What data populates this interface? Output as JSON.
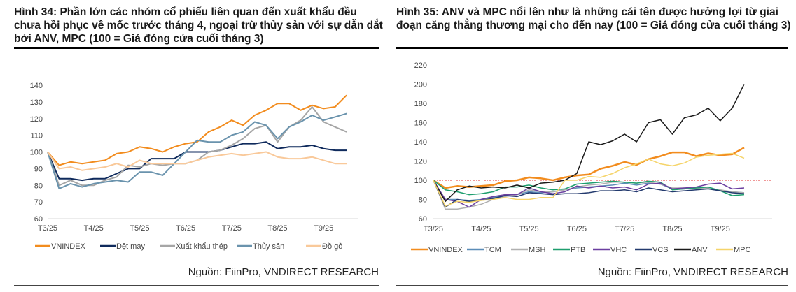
{
  "chart_data": [
    {
      "type": "line",
      "title": "Hình 34: Phần lớn các nhóm cổ phiếu liên quan đến xuất khẩu đều chưa hồi phục về mốc trước tháng 4, ngoại trừ thủy sản với sự dẫn dắt bởi ANV, MPC (100 = Giá đóng cửa cuối tháng 3)",
      "source": "Nguồn: FiinPro, VNDIRECT RESEARCH",
      "x_step_months": 0.25,
      "xticks": [
        "T3/25",
        "T4/25",
        "T5/25",
        "T6/25",
        "T7/25",
        "T8/25",
        "T9/25"
      ],
      "yticks": [
        60,
        70,
        80,
        90,
        100,
        110,
        120,
        130,
        140
      ],
      "ylim": [
        60,
        140
      ],
      "reference_line": 100,
      "legend_position": "bottom",
      "series": [
        {
          "name": "VNINDEX",
          "color": "#F28C1E",
          "values": [
            100,
            92,
            94,
            93,
            94,
            95,
            99,
            100,
            103,
            102,
            100,
            103,
            105,
            106,
            112,
            115,
            119,
            116,
            122,
            125,
            129,
            129,
            125,
            128,
            126,
            127,
            134
          ]
        },
        {
          "name": "Dệt may",
          "color": "#0F2A5C",
          "values": [
            100,
            84,
            84,
            83,
            84,
            84,
            87,
            90,
            90,
            96,
            96,
            96,
            100,
            100,
            100,
            101,
            103,
            105,
            105,
            106,
            102,
            103,
            103,
            104,
            102,
            101,
            101
          ]
        },
        {
          "name": "Xuất khẩu thép",
          "color": "#A6A6A6",
          "values": [
            100,
            80,
            83,
            80,
            80,
            83,
            85,
            92,
            91,
            93,
            92,
            93,
            93,
            95,
            100,
            101,
            104,
            108,
            114,
            116,
            106,
            115,
            119,
            127,
            118,
            115,
            112
          ]
        },
        {
          "name": "Thủy sản",
          "color": "#6A93AD",
          "values": [
            100,
            78,
            81,
            79,
            81,
            82,
            83,
            82,
            88,
            88,
            86,
            93,
            100,
            107,
            106,
            106,
            110,
            112,
            118,
            116,
            108,
            115,
            118,
            122,
            119,
            121,
            123
          ]
        },
        {
          "name": "Đồ gỗ",
          "color": "#F9C99A",
          "values": [
            100,
            90,
            91,
            89,
            90,
            91,
            93,
            91,
            95,
            93,
            93,
            93,
            93,
            95,
            97,
            98,
            99,
            98,
            99,
            100,
            97,
            96,
            96,
            97,
            95,
            93,
            93
          ]
        }
      ]
    },
    {
      "type": "line",
      "title": "Hình 35: ANV và MPC nổi lên như là những cái tên được hưởng lợi từ giai đoạn căng thẳng thương mại cho đến nay (100 = Giá đóng cửa cuối tháng 3)",
      "source": "Nguồn: FiinPro, VNDIRECT RESEARCH",
      "x_step_months": 0.25,
      "xticks": [
        "T3/25",
        "T4/25",
        "T5/25",
        "T6/25",
        "T7/25",
        "T8/25",
        "T9/25"
      ],
      "yticks": [
        60,
        80,
        100,
        120,
        140,
        160,
        180,
        200,
        220
      ],
      "ylim": [
        60,
        220
      ],
      "reference_line": 100,
      "legend_position": "bottom",
      "series": [
        {
          "name": "VNINDEX",
          "color": "#F28C1E",
          "values": [
            100,
            92,
            94,
            93,
            94,
            95,
            99,
            100,
            103,
            102,
            100,
            103,
            105,
            106,
            112,
            115,
            119,
            116,
            122,
            125,
            129,
            129,
            125,
            128,
            126,
            127,
            134
          ]
        },
        {
          "name": "TCM",
          "color": "#5B8DB8",
          "values": [
            100,
            80,
            80,
            79,
            80,
            82,
            84,
            85,
            88,
            87,
            88,
            90,
            92,
            93,
            94,
            95,
            97,
            95,
            97,
            96,
            91,
            91,
            92,
            93,
            89,
            88,
            87
          ]
        },
        {
          "name": "MSH",
          "color": "#B0B0B0",
          "values": [
            100,
            70,
            70,
            72,
            75,
            80,
            83,
            85,
            90,
            88,
            88,
            90,
            93,
            95,
            96,
            98,
            98,
            97,
            98,
            96,
            92,
            92,
            91,
            92,
            90,
            88,
            87
          ]
        },
        {
          "name": "PTB",
          "color": "#1E9E6E",
          "values": [
            100,
            90,
            88,
            85,
            86,
            88,
            93,
            93,
            95,
            92,
            90,
            91,
            96,
            97,
            98,
            99,
            98,
            97,
            99,
            98,
            90,
            91,
            92,
            93,
            89,
            84,
            85
          ]
        },
        {
          "name": "VHC",
          "color": "#6B3FA0",
          "values": [
            100,
            80,
            78,
            72,
            80,
            83,
            85,
            85,
            92,
            88,
            86,
            88,
            94,
            92,
            94,
            92,
            93,
            90,
            96,
            97,
            91,
            92,
            93,
            96,
            97,
            91,
            92
          ]
        },
        {
          "name": "VCS",
          "color": "#233A6E",
          "values": [
            100,
            72,
            80,
            78,
            79,
            81,
            84,
            83,
            87,
            86,
            85,
            86,
            86,
            87,
            89,
            89,
            90,
            88,
            92,
            90,
            88,
            89,
            90,
            91,
            89,
            87,
            86
          ]
        },
        {
          "name": "ANV",
          "color": "#1A1A1A",
          "values": [
            100,
            78,
            90,
            94,
            92,
            93,
            92,
            95,
            92,
            97,
            98,
            100,
            107,
            140,
            137,
            141,
            148,
            140,
            160,
            163,
            148,
            165,
            168,
            175,
            162,
            175,
            200
          ]
        },
        {
          "name": "MPC",
          "color": "#F5D46A",
          "values": [
            100,
            73,
            78,
            77,
            79,
            80,
            82,
            80,
            80,
            82,
            82,
            100,
            100,
            104,
            103,
            107,
            113,
            117,
            122,
            117,
            115,
            118,
            124,
            126,
            127,
            128,
            123
          ]
        }
      ]
    }
  ]
}
